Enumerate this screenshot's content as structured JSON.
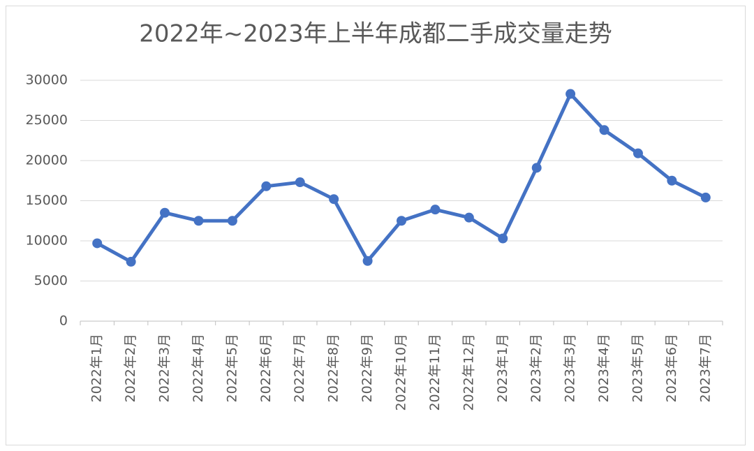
{
  "chart_data": {
    "type": "line",
    "title": "2022年~2023年上半年成都二手成交量走势",
    "categories": [
      "2022年1月",
      "2022年2月",
      "2022年3月",
      "2022年4月",
      "2022年5月",
      "2022年6月",
      "2022年7月",
      "2022年8月",
      "2022年9月",
      "2022年10月",
      "2022年11月",
      "2022年12月",
      "2023年1月",
      "2023年2月",
      "2023年3月",
      "2023年4月",
      "2023年5月",
      "2023年6月",
      "2023年7月"
    ],
    "series": [
      {
        "name": "成交量",
        "color": "#4472c4",
        "values": [
          9700,
          7400,
          13500,
          12500,
          12500,
          16800,
          17300,
          15200,
          7500,
          12500,
          13900,
          12900,
          10300,
          19100,
          28300,
          23800,
          20900,
          17500,
          15400
        ]
      }
    ],
    "ylim": [
      0,
      30000
    ],
    "yticks": [
      0,
      5000,
      10000,
      15000,
      20000,
      25000,
      30000
    ],
    "grid": true
  }
}
